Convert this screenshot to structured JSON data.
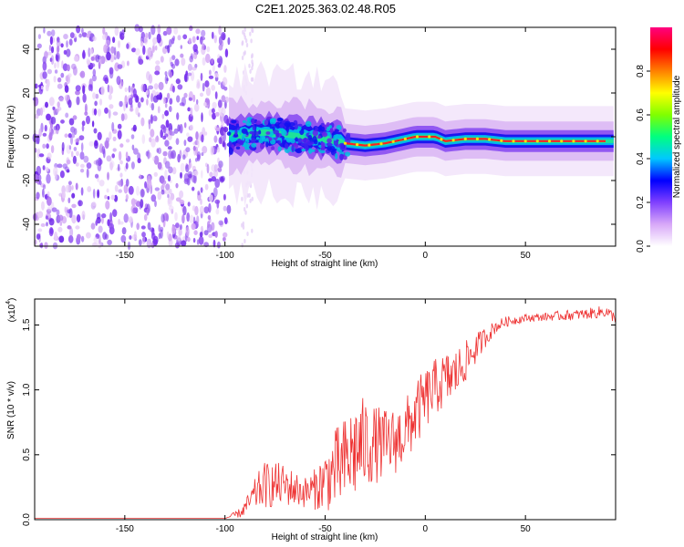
{
  "title": "C2E1.2025.363.02.48.R05",
  "chart_data": [
    {
      "type": "heatmap",
      "name": "spectrogram",
      "xlabel": "Height of straight line (km)",
      "ylabel": "Frequency (Hz)",
      "xlim": [
        -195,
        95
      ],
      "ylim": [
        -50,
        50
      ],
      "xticks": [
        -150,
        -100,
        -50,
        0,
        50
      ],
      "yticks": [
        -40,
        -20,
        0,
        20,
        40
      ],
      "colorbar": {
        "label": "Normalized spectral amplitude",
        "range": [
          0.0,
          1.0
        ],
        "ticks": [
          0.0,
          0.2,
          0.4,
          0.6,
          0.8
        ],
        "tick_labels": [
          "0.0",
          "0.2",
          "0.4",
          "0.6",
          "0.8"
        ],
        "colormap": [
          "#ffffff",
          "#d8a8f8",
          "#8040ff",
          "#0000ff",
          "#00c8ff",
          "#00ff80",
          "#80ff00",
          "#ffff00",
          "#ff8000",
          "#ff0000",
          "#ff0080"
        ]
      },
      "ridge": {
        "x": [
          -98,
          -90,
          -80,
          -70,
          -60,
          -50,
          -40,
          -30,
          -20,
          -10,
          -5,
          0,
          5,
          10,
          20,
          30,
          40,
          50,
          60,
          70,
          80,
          90,
          95
        ],
        "freq": [
          0,
          1,
          2,
          1,
          0,
          -1,
          -3,
          -4,
          -3,
          -1,
          0,
          0,
          0,
          -2,
          -1,
          -1,
          -2,
          -2,
          -2,
          -2,
          -2,
          -2,
          -2
        ]
      },
      "noise_region_x": [
        -195,
        -98
      ],
      "peak_region_x": [
        -40,
        90
      ]
    },
    {
      "type": "line",
      "name": "snr",
      "xlabel": "Height of straight line (km)",
      "ylabel": "SNR (10 * v/v)",
      "y_multiplier": "(x10",
      "y_multiplier_exp": "4",
      "xlim": [
        -195,
        95
      ],
      "ylim": [
        0,
        1.7
      ],
      "xticks": [
        -150,
        -100,
        -50,
        0,
        50
      ],
      "yticks": [
        0.0,
        0.5,
        1.0,
        1.5
      ],
      "ytick_labels": [
        "0.0",
        "0.5",
        "1.0",
        "1.5"
      ],
      "color": "#ee3333",
      "series": {
        "x": [
          -195,
          -150,
          -100,
          -92,
          -88,
          -84,
          -80,
          -75,
          -70,
          -65,
          -60,
          -55,
          -50,
          -45,
          -40,
          -35,
          -30,
          -25,
          -20,
          -15,
          -10,
          -5,
          0,
          5,
          10,
          15,
          20,
          25,
          30,
          35,
          40,
          50,
          60,
          70,
          80,
          90,
          95
        ],
        "y": [
          0.01,
          0.01,
          0.01,
          0.05,
          0.12,
          0.2,
          0.25,
          0.25,
          0.25,
          0.22,
          0.2,
          0.22,
          0.28,
          0.35,
          0.4,
          0.5,
          0.55,
          0.55,
          0.55,
          0.58,
          0.65,
          0.78,
          0.9,
          1.0,
          1.05,
          1.1,
          1.2,
          1.3,
          1.4,
          1.48,
          1.52,
          1.55,
          1.56,
          1.57,
          1.58,
          1.6,
          1.55
        ],
        "jitter": [
          0.0,
          0.0,
          0.0,
          0.04,
          0.08,
          0.14,
          0.18,
          0.18,
          0.16,
          0.14,
          0.12,
          0.16,
          0.24,
          0.32,
          0.36,
          0.4,
          0.36,
          0.3,
          0.28,
          0.26,
          0.26,
          0.26,
          0.24,
          0.22,
          0.22,
          0.2,
          0.16,
          0.12,
          0.08,
          0.05,
          0.04,
          0.03,
          0.03,
          0.04,
          0.04,
          0.05,
          0.04
        ]
      }
    }
  ]
}
